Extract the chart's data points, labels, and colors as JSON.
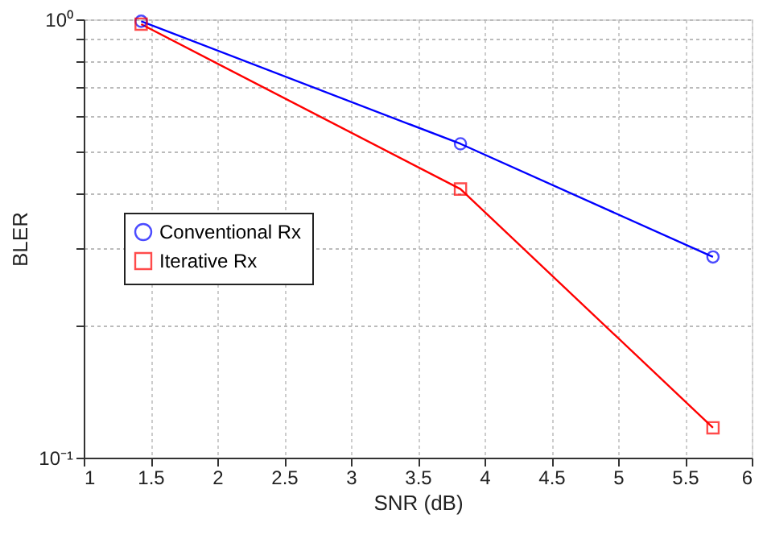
{
  "chart_data": {
    "type": "line",
    "xlabel": "SNR (dB)",
    "ylabel": "BLER",
    "x": [
      1.43,
      3.82,
      5.71
    ],
    "series": [
      {
        "name": "Conventional Rx",
        "color": "#0000ff",
        "marker": "circle",
        "values": [
          0.99,
          0.52,
          0.287
        ]
      },
      {
        "name": "Iterative Rx",
        "color": "#ff0000",
        "marker": "square",
        "values": [
          0.975,
          0.41,
          0.117
        ]
      }
    ],
    "xlim": [
      1,
      6
    ],
    "xticks": [
      1,
      1.5,
      2,
      2.5,
      3,
      3.5,
      4,
      4.5,
      5,
      5.5,
      6
    ],
    "ylim": [
      0.1,
      1
    ],
    "yticks": [
      {
        "value": 0.1,
        "label": "10⁻¹"
      },
      {
        "value": 0.2,
        "label": null
      },
      {
        "value": 0.3,
        "label": null
      },
      {
        "value": 0.4,
        "label": null
      },
      {
        "value": 0.5,
        "label": null
      },
      {
        "value": 0.6,
        "label": null
      },
      {
        "value": 0.7,
        "label": null
      },
      {
        "value": 0.8,
        "label": null
      },
      {
        "value": 0.9,
        "label": null
      },
      {
        "value": 1,
        "label": "10⁰"
      }
    ],
    "log": true,
    "grid": true,
    "legend": "left",
    "line_style": "solid"
  }
}
